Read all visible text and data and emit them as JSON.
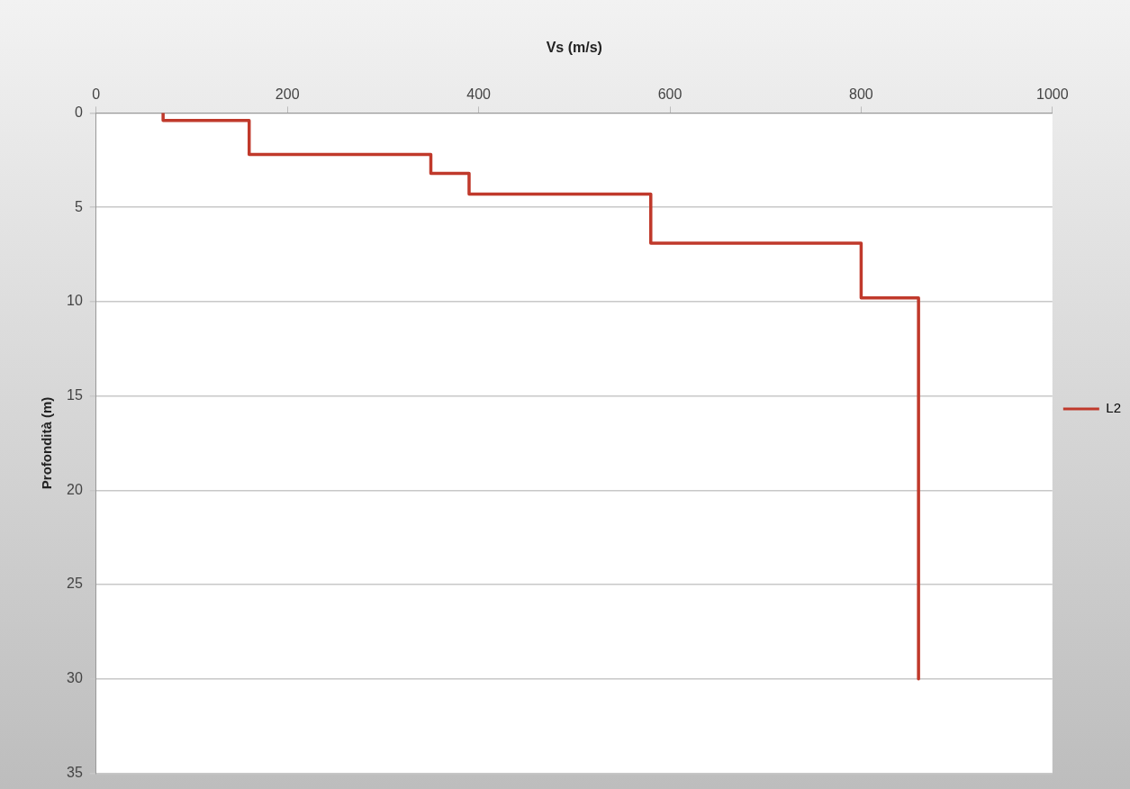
{
  "chart_data": {
    "type": "line",
    "xlabel": "Vs (m/s)",
    "ylabel": "Profondità (m)",
    "xlim": [
      0,
      1000
    ],
    "xticks": [
      0,
      200,
      400,
      600,
      800,
      1000
    ],
    "ylim": [
      35,
      0
    ],
    "yticks": [
      0,
      5,
      10,
      15,
      20,
      25,
      30,
      35
    ],
    "grid": "y",
    "legend": "right",
    "marker": "none",
    "series": [
      {
        "name": "L2",
        "color": "#c0392b",
        "x": [
          70,
          70,
          160,
          160,
          350,
          350,
          390,
          390,
          580,
          580,
          800,
          800,
          860,
          860
        ],
        "values": [
          0,
          0.4,
          0.4,
          2.2,
          2.2,
          3.2,
          3.2,
          4.3,
          4.3,
          6.9,
          6.9,
          9.8,
          9.8,
          30
        ]
      }
    ]
  }
}
